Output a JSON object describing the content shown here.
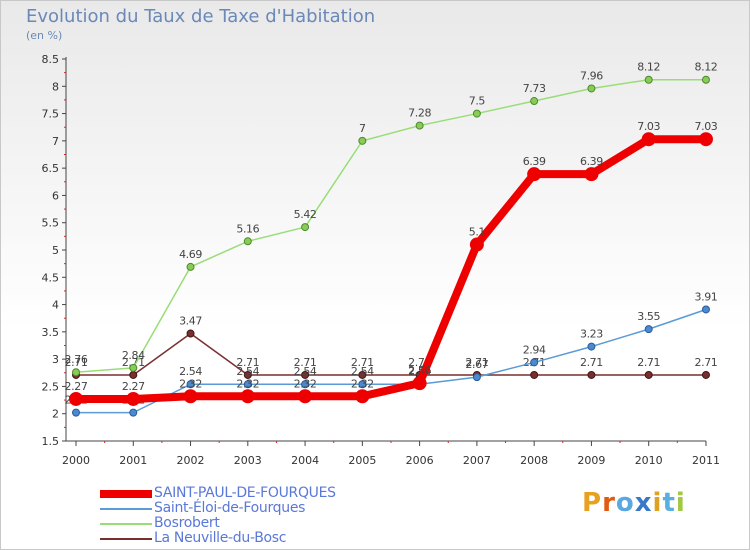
{
  "header": {
    "title": "Evolution du Taux de Taxe d'Habitation",
    "unit": "(en %)"
  },
  "brand": {
    "letters": [
      "P",
      "r",
      "o",
      "x",
      "i",
      "t",
      "i"
    ],
    "colors": [
      "#e8a020",
      "#e05a10",
      "#59a8e0",
      "#3a78c8",
      "#e0a020",
      "#59b0e0",
      "#a0c840"
    ]
  },
  "chart_data": {
    "type": "line",
    "title": "Evolution du Taux de Taxe d'Habitation",
    "ylabel": "(en %)",
    "xlabel": "",
    "x": [
      "2000",
      "2001",
      "2002",
      "2003",
      "2004",
      "2005",
      "2006",
      "2007",
      "2008",
      "2009",
      "2010",
      "2011"
    ],
    "ylim": [
      1.5,
      8.5
    ],
    "yticks": [
      "1.5",
      "2",
      "2.5",
      "3",
      "3.5",
      "4",
      "4.5",
      "5",
      "5.5",
      "6",
      "6.5",
      "7",
      "7.5",
      "8",
      "8.5"
    ],
    "grid": false,
    "legend": "bottom-left",
    "series": [
      {
        "name": "SAINT-PAUL-DE-FOURQUES",
        "color": "#ee0000",
        "values": [
          2.27,
          2.27,
          2.32,
          2.32,
          2.32,
          2.32,
          2.56,
          5.1,
          6.39,
          6.39,
          7.03,
          7.03
        ],
        "labels": [
          "2.27",
          "2.27",
          "2.32",
          "2.32",
          "2.32",
          "2.32",
          "2.56",
          "5.1",
          "6.39",
          "6.39",
          "7.03",
          "7.03"
        ]
      },
      {
        "name": "Saint-Éloi-de-Fourques",
        "color": "#5a9ad5",
        "values": [
          2.02,
          2.02,
          2.54,
          2.54,
          2.54,
          2.54,
          2.54,
          2.67,
          2.94,
          3.23,
          3.55,
          3.91
        ],
        "labels": [
          "2.02",
          "2.02",
          "2.54",
          "2.54",
          "2.54",
          "2.54",
          "2.54",
          "2.67",
          "2.94",
          "3.23",
          "3.55",
          "3.91"
        ]
      },
      {
        "name": "Bosrobert",
        "color": "#99dd77",
        "values": [
          2.76,
          2.84,
          4.69,
          5.16,
          5.42,
          7.0,
          7.28,
          7.5,
          7.73,
          7.96,
          8.12,
          8.12
        ],
        "labels": [
          "2.76",
          "2.84",
          "4.69",
          "5.16",
          "5.42",
          "7",
          "7.28",
          "7.5",
          "7.73",
          "7.96",
          "8.12",
          "8.12"
        ]
      },
      {
        "name": "La Neuville-du-Bosc",
        "color": "#7a2f2f",
        "values": [
          2.71,
          2.71,
          3.47,
          2.71,
          2.71,
          2.71,
          2.71,
          2.71,
          2.71,
          2.71,
          2.71,
          2.71
        ],
        "labels": [
          "2.71",
          "2.71",
          "3.47",
          "2.71",
          "2.71",
          "2.71",
          "2.71",
          "2.71",
          "2.71",
          "2.71",
          "2.71",
          "2.71"
        ]
      }
    ]
  }
}
